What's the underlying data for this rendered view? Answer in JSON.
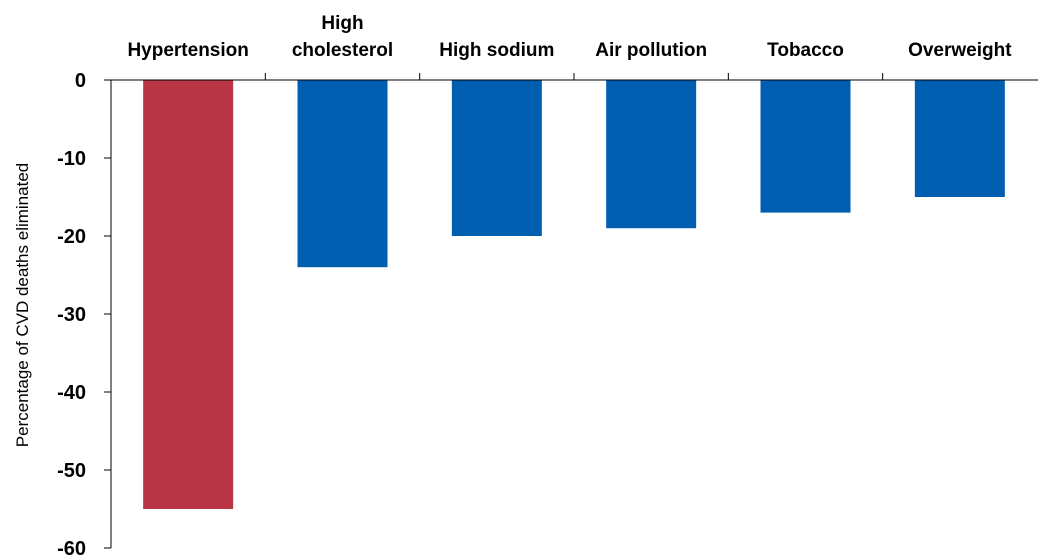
{
  "chart_data": {
    "type": "bar",
    "title": "",
    "xlabel": "",
    "ylabel": "Percentage of CVD deaths eliminated",
    "categories": [
      "Hypertension",
      "High cholesterol",
      "High sodium",
      "Air pollution",
      "Tobacco",
      "Overweight"
    ],
    "category_lines": [
      [
        "Hypertension"
      ],
      [
        "High",
        "cholesterol"
      ],
      [
        "High sodium"
      ],
      [
        "Air pollution"
      ],
      [
        "Tobacco"
      ],
      [
        "Overweight"
      ]
    ],
    "values": [
      -55,
      -24,
      -20,
      -19,
      -17,
      -15
    ],
    "bar_colors": [
      "#B83645",
      "#005EB0",
      "#005EB0",
      "#005EB0",
      "#005EB0",
      "#005EB0"
    ],
    "ylim": [
      -60,
      0
    ],
    "yticks": [
      0,
      -10,
      -20,
      -30,
      -40,
      -50,
      -60
    ],
    "ytick_labels": [
      "0",
      "-10",
      "-20",
      "-30",
      "-40",
      "-50",
      "-60"
    ],
    "category_label_position": "top",
    "grid": false,
    "legend": "none"
  }
}
